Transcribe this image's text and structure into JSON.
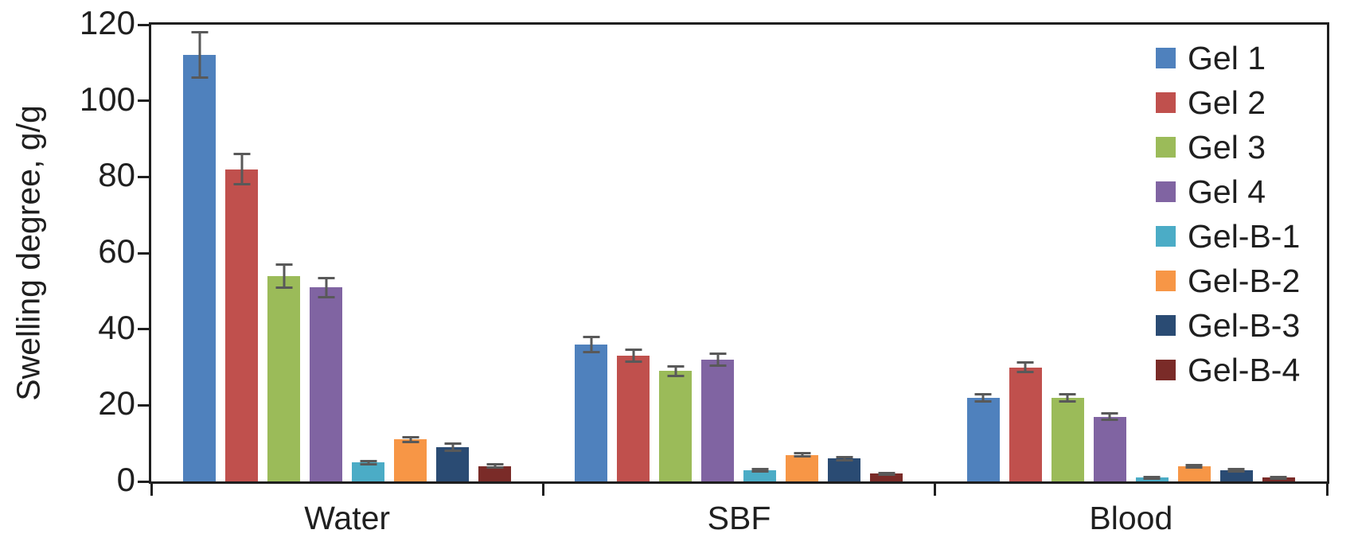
{
  "chart_data": {
    "type": "bar",
    "title": "",
    "xlabel": "",
    "ylabel": "Swelling degree, g/g",
    "ylim": [
      0,
      120
    ],
    "yticks": [
      0,
      20,
      40,
      60,
      80,
      100,
      120
    ],
    "grid": false,
    "legend_position": "inside-top-right",
    "error_bars": true,
    "categories": [
      "Water",
      "SBF",
      "Blood"
    ],
    "series": [
      {
        "name": "Gel 1",
        "color": "#4F81BD",
        "values": [
          112,
          36,
          22
        ],
        "errors": [
          6,
          2,
          1
        ]
      },
      {
        "name": "Gel 2",
        "color": "#C0504D",
        "values": [
          82,
          33,
          30
        ],
        "errors": [
          4,
          1.5,
          1.2
        ]
      },
      {
        "name": "Gel 3",
        "color": "#9BBB59",
        "values": [
          54,
          29,
          22
        ],
        "errors": [
          3,
          1.2,
          1
        ]
      },
      {
        "name": "Gel 4",
        "color": "#8064A2",
        "values": [
          51,
          32,
          17
        ],
        "errors": [
          2.5,
          1.5,
          0.8
        ]
      },
      {
        "name": "Gel-B-1",
        "color": "#4BACC6",
        "values": [
          5,
          3,
          1
        ],
        "errors": [
          0.4,
          0.3,
          0.2
        ]
      },
      {
        "name": "Gel-B-2",
        "color": "#F79646",
        "values": [
          11,
          7,
          4
        ],
        "errors": [
          0.6,
          0.5,
          0.3
        ]
      },
      {
        "name": "Gel-B-3",
        "color": "#2A4B73",
        "values": [
          9,
          6,
          3
        ],
        "errors": [
          1,
          0.4,
          0.3
        ]
      },
      {
        "name": "Gel-B-4",
        "color": "#7A2B28",
        "values": [
          4,
          2,
          1
        ],
        "errors": [
          0.4,
          0.3,
          0.2
        ]
      }
    ]
  },
  "style_colors": {
    "axis": "#1f1f1f",
    "error_bar": "#595959",
    "text": "#1f1f1f",
    "background": "#ffffff"
  }
}
